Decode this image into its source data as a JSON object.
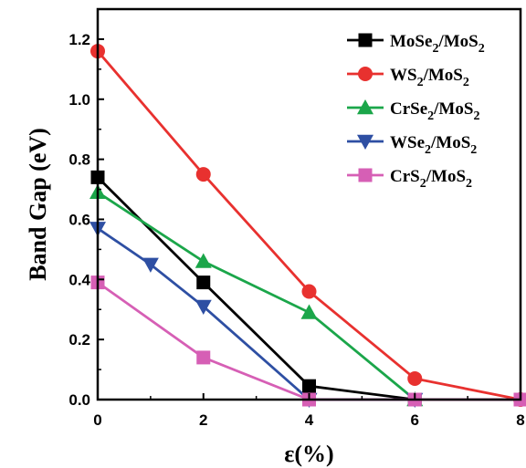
{
  "chart_data": {
    "type": "line",
    "xlabel": "ε(%)",
    "ylabel": "Band Gap (eV)",
    "xlim": [
      0,
      8
    ],
    "ylim": [
      0,
      1.3
    ],
    "xticks": [
      "0",
      "2",
      "4",
      "6",
      "8"
    ],
    "yticks": [
      "0.0",
      "0.2",
      "0.4",
      "0.6",
      "0.8",
      "1.0",
      "1.2"
    ],
    "grid": false,
    "legend_position": "top-right",
    "series": [
      {
        "name": "MoSe2/MoS2",
        "label_parts": [
          [
            "MoSe",
            ""
          ],
          [
            "2",
            "sub"
          ],
          [
            "/MoS",
            ""
          ],
          [
            "2",
            "sub"
          ]
        ],
        "color": "#000000",
        "marker": "square",
        "points": [
          [
            0,
            0.74
          ],
          [
            2,
            0.39
          ],
          [
            4,
            0.045
          ],
          [
            6,
            0.0
          ],
          [
            8,
            0.0
          ]
        ]
      },
      {
        "name": "WS2/MoS2",
        "label_parts": [
          [
            "WS",
            ""
          ],
          [
            "2",
            "sub"
          ],
          [
            "/MoS",
            ""
          ],
          [
            "2",
            "sub"
          ]
        ],
        "color": "#e8312f",
        "marker": "circle",
        "points": [
          [
            0,
            1.16
          ],
          [
            2,
            0.75
          ],
          [
            4,
            0.36
          ],
          [
            6,
            0.07
          ],
          [
            8,
            0.0
          ]
        ]
      },
      {
        "name": "CrSe2/MoS2",
        "label_parts": [
          [
            "CrSe",
            ""
          ],
          [
            "2",
            "sub"
          ],
          [
            "/MoS",
            ""
          ],
          [
            "2",
            "sub"
          ]
        ],
        "color": "#1ba64a",
        "marker": "triangle-up",
        "points": [
          [
            0,
            0.69
          ],
          [
            2,
            0.46
          ],
          [
            4,
            0.29
          ],
          [
            6,
            0.0
          ]
        ]
      },
      {
        "name": "WSe2/MoS2",
        "label_parts": [
          [
            "WSe",
            ""
          ],
          [
            "2",
            "sub"
          ],
          [
            "/MoS",
            ""
          ],
          [
            "2",
            "sub"
          ]
        ],
        "color": "#2e4fa3",
        "marker": "triangle-down",
        "points": [
          [
            0,
            0.57
          ],
          [
            1,
            0.45
          ],
          [
            2,
            0.31
          ],
          [
            4,
            0.0
          ],
          [
            6,
            0.0
          ]
        ]
      },
      {
        "name": "CrS2/MoS2",
        "label_parts": [
          [
            "CrS",
            ""
          ],
          [
            "2",
            "sub"
          ],
          [
            "/MoS",
            ""
          ],
          [
            "2",
            "sub"
          ]
        ],
        "color": "#d65fb5",
        "marker": "square",
        "points": [
          [
            0,
            0.39
          ],
          [
            2,
            0.14
          ],
          [
            4,
            0.0
          ],
          [
            6,
            0.0
          ],
          [
            8,
            0.0
          ]
        ]
      }
    ]
  }
}
